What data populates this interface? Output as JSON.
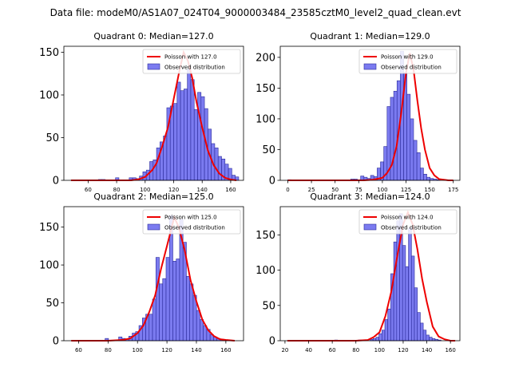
{
  "suptitle": "Data file: modeM0/AS1A07_024T04_9000003484_23585cztM0_level2_quad_clean.evt",
  "colors": {
    "bar_fill": "#7b7bf0",
    "bar_edge": "#2a2a9a",
    "fit_line": "#ee0000"
  },
  "chart_data": [
    {
      "type": "bar",
      "title": "Quadrant 0: Median=127.0",
      "legend": {
        "position": "top-right",
        "entries": [
          "Poisson with 127.0",
          "Observed distribution"
        ]
      },
      "xlim": [
        43,
        169
      ],
      "ylim": [
        0,
        157
      ],
      "xticks": [
        60,
        80,
        100,
        120,
        140,
        160
      ],
      "yticks": [
        0,
        50,
        100,
        150
      ],
      "hist": {
        "x0": 48,
        "bin_width": 2.4,
        "values": [
          0,
          0,
          0,
          0,
          0,
          0,
          0,
          0,
          1,
          1,
          0,
          0,
          0,
          3,
          0,
          0,
          0,
          3,
          3,
          2,
          5,
          10,
          12,
          22,
          24,
          38,
          45,
          52,
          85,
          87,
          90,
          115,
          105,
          107,
          130,
          118,
          83,
          103,
          98,
          84,
          60,
          43,
          38,
          28,
          25,
          19,
          14,
          6,
          4
        ]
      },
      "fit": {
        "x": [
          48,
          60,
          70,
          80,
          90,
          95,
          100,
          105,
          108,
          112,
          116,
          120,
          124,
          127,
          130,
          133,
          136,
          140,
          144,
          148,
          152,
          156,
          160,
          164
        ],
        "y": [
          0,
          0,
          0,
          0,
          0,
          1,
          4,
          12,
          20,
          40,
          62,
          95,
          128,
          150,
          140,
          120,
          92,
          62,
          35,
          18,
          8,
          3,
          1,
          0
        ]
      }
    },
    {
      "type": "bar",
      "title": "Quadrant 1: Median=129.0",
      "legend": {
        "position": "top-right",
        "entries": [
          "Poisson with 129.0",
          "Observed distribution"
        ]
      },
      "xlim": [
        -8,
        182
      ],
      "ylim": [
        0,
        218
      ],
      "xticks": [
        0,
        25,
        50,
        75,
        100,
        125,
        150,
        175
      ],
      "yticks": [
        0,
        50,
        100,
        150,
        200
      ],
      "hist": {
        "x0": 0,
        "bin_width": 3.5,
        "values": [
          1,
          0,
          0,
          0,
          0,
          0,
          0,
          0,
          0,
          0,
          0,
          0,
          0,
          0,
          0,
          0,
          0,
          0,
          0,
          2,
          2,
          1,
          7,
          5,
          3,
          8,
          6,
          20,
          30,
          55,
          120,
          135,
          145,
          162,
          210,
          175,
          140,
          100,
          65,
          45,
          20,
          10,
          5,
          3,
          2,
          1
        ]
      },
      "fit": {
        "x": [
          0,
          50,
          80,
          90,
          100,
          105,
          110,
          115,
          120,
          125,
          129,
          133,
          137,
          141,
          145,
          150,
          155,
          160,
          170,
          175
        ],
        "y": [
          0,
          0,
          0,
          1,
          4,
          12,
          25,
          55,
          110,
          175,
          207,
          180,
          130,
          85,
          50,
          20,
          8,
          2,
          0,
          0
        ]
      }
    },
    {
      "type": "bar",
      "title": "Quadrant 2: Median=125.0",
      "legend": {
        "position": "top-right",
        "entries": [
          "Poisson with 125.0",
          "Observed distribution"
        ]
      },
      "xlim": [
        50,
        172
      ],
      "ylim": [
        0,
        177
      ],
      "xticks": [
        60,
        80,
        100,
        120,
        140,
        160
      ],
      "yticks": [
        0,
        50,
        100,
        150
      ],
      "hist": {
        "x0": 55,
        "bin_width": 2.3,
        "values": [
          0,
          0,
          0,
          0,
          0,
          0,
          0,
          0,
          0,
          0,
          3,
          0,
          0,
          0,
          5,
          3,
          2,
          6,
          10,
          12,
          20,
          30,
          35,
          35,
          55,
          110,
          75,
          82,
          110,
          165,
          105,
          108,
          160,
          130,
          85,
          75,
          60,
          40,
          28,
          20,
          15,
          8,
          5,
          3,
          2,
          1,
          0,
          0
        ]
      },
      "fit": {
        "x": [
          55,
          80,
          90,
          95,
          100,
          104,
          108,
          112,
          116,
          120,
          125,
          128,
          132,
          136,
          140,
          144,
          148,
          152,
          156,
          160,
          166
        ],
        "y": [
          0,
          0,
          1,
          3,
          10,
          20,
          38,
          60,
          95,
          125,
          163,
          150,
          120,
          80,
          52,
          28,
          14,
          6,
          2,
          1,
          0
        ]
      }
    },
    {
      "type": "bar",
      "title": "Quadrant 3: Median=124.0",
      "legend": {
        "position": "top-right",
        "entries": [
          "Poisson with 124.0",
          "Observed distribution"
        ]
      },
      "xlim": [
        16,
        168
      ],
      "ylim": [
        0,
        190
      ],
      "xticks": [
        20,
        40,
        60,
        80,
        100,
        120,
        140,
        160
      ],
      "yticks": [
        0,
        50,
        100,
        150
      ],
      "hist": {
        "x0": 22,
        "bin_width": 2.5,
        "values": [
          0,
          0,
          0,
          0,
          0,
          0,
          0,
          0,
          0,
          0,
          0,
          0,
          0,
          0,
          0,
          0,
          1,
          0,
          0,
          0,
          0,
          0,
          0,
          0,
          1,
          0,
          0,
          0,
          2,
          3,
          5,
          10,
          15,
          30,
          45,
          95,
          140,
          170,
          180,
          135,
          105,
          160,
          120,
          75,
          40,
          25,
          15,
          8,
          5,
          3,
          2,
          1,
          0,
          0
        ]
      },
      "fit": {
        "x": [
          22,
          60,
          80,
          90,
          95,
          100,
          105,
          110,
          115,
          120,
          124,
          128,
          132,
          136,
          140,
          145,
          150,
          155,
          160,
          164
        ],
        "y": [
          0,
          0,
          0,
          1,
          5,
          12,
          35,
          70,
          120,
          165,
          182,
          165,
          130,
          88,
          55,
          20,
          6,
          2,
          0,
          0
        ]
      }
    }
  ]
}
